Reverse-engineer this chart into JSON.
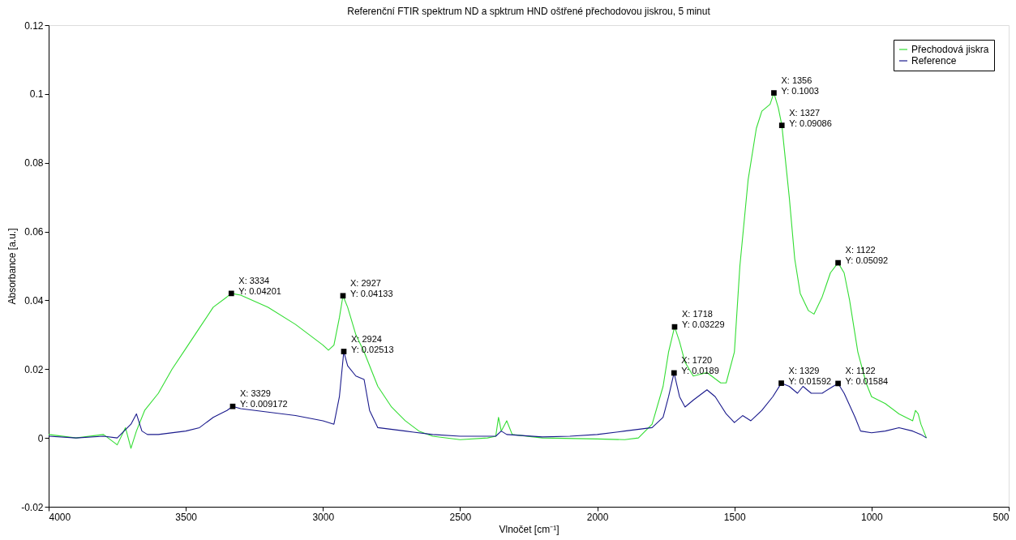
{
  "chart_data": {
    "type": "line",
    "title": "Referenční FTIR spektrum ND a spktrum HND oštřené přechodovou jiskrou, 5 minut",
    "xlabel": "Vlnočet [cm⁻¹]",
    "ylabel": "Absorbance [a.u.]",
    "xlim": [
      4000,
      500
    ],
    "xticks": [
      4000,
      3500,
      3000,
      2500,
      2000,
      1500,
      1000,
      500
    ],
    "ylim": [
      -0.02,
      0.12
    ],
    "yticks": [
      -0.02,
      0,
      0.02,
      0.04,
      0.06,
      0.08,
      0.1,
      0.12
    ],
    "grid": false,
    "legend": "top right",
    "line_style": "solid",
    "series": [
      {
        "name": "Přechodová jiskra",
        "color": "#33dd33",
        "x": [
          4000,
          3900,
          3800,
          3750,
          3720,
          3700,
          3680,
          3650,
          3600,
          3550,
          3500,
          3450,
          3400,
          3350,
          3334,
          3300,
          3200,
          3100,
          3000,
          2980,
          2960,
          2940,
          2927,
          2910,
          2880,
          2850,
          2800,
          2750,
          2700,
          2650,
          2600,
          2500,
          2400,
          2370,
          2360,
          2350,
          2330,
          2310,
          2200,
          2000,
          1900,
          1850,
          1800,
          1760,
          1740,
          1718,
          1700,
          1680,
          1650,
          1600,
          1550,
          1530,
          1500,
          1480,
          1450,
          1420,
          1400,
          1370,
          1356,
          1340,
          1327,
          1300,
          1280,
          1260,
          1230,
          1210,
          1180,
          1150,
          1122,
          1100,
          1080,
          1050,
          1020,
          1000,
          950,
          900,
          850,
          840,
          830,
          820,
          800
        ],
        "values": [
          0.001,
          0.0,
          0.001,
          -0.002,
          0.003,
          -0.003,
          0.002,
          0.008,
          0.013,
          0.02,
          0.026,
          0.032,
          0.038,
          0.041,
          0.04201,
          0.0415,
          0.038,
          0.033,
          0.027,
          0.0255,
          0.027,
          0.035,
          0.04133,
          0.038,
          0.03,
          0.025,
          0.015,
          0.009,
          0.005,
          0.002,
          0.0005,
          -0.0005,
          0.0,
          0.0005,
          0.006,
          0.002,
          0.005,
          0.001,
          0.0,
          -0.0003,
          -0.0005,
          0.0,
          0.004,
          0.015,
          0.025,
          0.03229,
          0.028,
          0.022,
          0.018,
          0.019,
          0.016,
          0.016,
          0.025,
          0.05,
          0.075,
          0.09,
          0.095,
          0.097,
          0.1003,
          0.096,
          0.09086,
          0.07,
          0.052,
          0.042,
          0.037,
          0.036,
          0.041,
          0.048,
          0.05092,
          0.048,
          0.04,
          0.025,
          0.016,
          0.012,
          0.01,
          0.007,
          0.005,
          0.008,
          0.007,
          0.004,
          0.0
        ]
      },
      {
        "name": "Reference",
        "color": "#1a1a8c",
        "x": [
          4000,
          3900,
          3800,
          3750,
          3700,
          3680,
          3660,
          3640,
          3600,
          3500,
          3450,
          3400,
          3350,
          3329,
          3300,
          3200,
          3100,
          3000,
          2960,
          2940,
          2924,
          2910,
          2880,
          2850,
          2830,
          2800,
          2700,
          2600,
          2500,
          2370,
          2350,
          2330,
          2200,
          2100,
          2000,
          1900,
          1800,
          1760,
          1740,
          1720,
          1700,
          1680,
          1650,
          1600,
          1570,
          1530,
          1500,
          1470,
          1440,
          1400,
          1360,
          1329,
          1300,
          1270,
          1250,
          1220,
          1180,
          1140,
          1122,
          1100,
          1060,
          1040,
          1000,
          950,
          900,
          850,
          820,
          800
        ],
        "values": [
          0.0005,
          0.0,
          0.0005,
          0.0,
          0.004,
          0.007,
          0.002,
          0.001,
          0.001,
          0.002,
          0.003,
          0.006,
          0.008,
          0.009172,
          0.0085,
          0.0075,
          0.0065,
          0.005,
          0.004,
          0.012,
          0.02513,
          0.021,
          0.018,
          0.017,
          0.008,
          0.003,
          0.002,
          0.001,
          0.0005,
          0.0005,
          0.002,
          0.001,
          0.0003,
          0.0005,
          0.001,
          0.002,
          0.003,
          0.006,
          0.012,
          0.0189,
          0.012,
          0.009,
          0.011,
          0.014,
          0.012,
          0.007,
          0.0045,
          0.0065,
          0.005,
          0.008,
          0.012,
          0.01592,
          0.015,
          0.013,
          0.015,
          0.013,
          0.013,
          0.015,
          0.01584,
          0.013,
          0.006,
          0.002,
          0.0015,
          0.002,
          0.003,
          0.002,
          0.001,
          0.0
        ]
      }
    ],
    "annotations": [
      {
        "text": "X: 3334\nY: 0.04201",
        "x": 3334,
        "y": 0.04201
      },
      {
        "text": "X: 3329\nY: 0.009172",
        "x": 3329,
        "y": 0.009172
      },
      {
        "text": "X: 2927\nY: 0.04133",
        "x": 2927,
        "y": 0.04133
      },
      {
        "text": "X: 2924\nY: 0.02513",
        "x": 2924,
        "y": 0.02513
      },
      {
        "text": "X: 1718\nY: 0.03229",
        "x": 1718,
        "y": 0.03229
      },
      {
        "text": "X: 1720\nY: 0.0189",
        "x": 1720,
        "y": 0.0189
      },
      {
        "text": "X: 1356\nY: 0.1003",
        "x": 1356,
        "y": 0.1003
      },
      {
        "text": "X: 1327\nY: 0.09086",
        "x": 1327,
        "y": 0.09086
      },
      {
        "text": "X: 1329\nY: 0.01592",
        "x": 1329,
        "y": 0.01592
      },
      {
        "text": "X: 1122\nY: 0.05092",
        "x": 1122,
        "y": 0.05092
      },
      {
        "text": "X: 1122\nY: 0.01584",
        "x": 1122,
        "y": 0.01584
      }
    ]
  }
}
